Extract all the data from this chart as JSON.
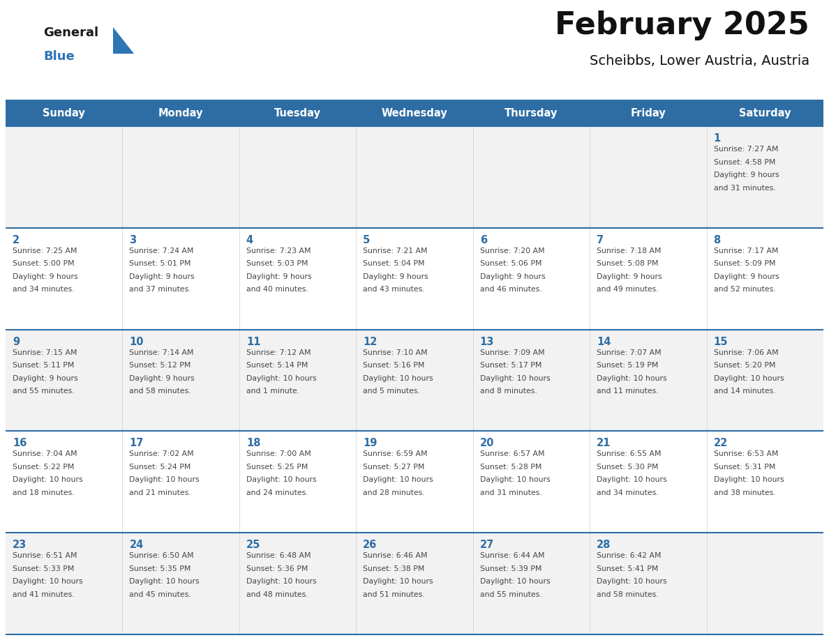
{
  "title": "February 2025",
  "subtitle": "Scheibbs, Lower Austria, Austria",
  "header_bg": "#2E6DA4",
  "header_text_color": "#FFFFFF",
  "cell_bg_odd": "#F2F2F2",
  "cell_bg_even": "#FFFFFF",
  "day_number_color": "#2E6DA4",
  "info_text_color": "#444444",
  "line_color": "#2E6DA4",
  "days_of_week": [
    "Sunday",
    "Monday",
    "Tuesday",
    "Wednesday",
    "Thursday",
    "Friday",
    "Saturday"
  ],
  "logo_general_color": "#1a1a1a",
  "logo_blue_color": "#2E75B6",
  "calendar_data": [
    [
      null,
      null,
      null,
      null,
      null,
      null,
      {
        "day": 1,
        "sunrise": "7:27 AM",
        "sunset": "4:58 PM",
        "daylight": "9 hours",
        "daylight2": "and 31 minutes."
      }
    ],
    [
      {
        "day": 2,
        "sunrise": "7:25 AM",
        "sunset": "5:00 PM",
        "daylight": "9 hours",
        "daylight2": "and 34 minutes."
      },
      {
        "day": 3,
        "sunrise": "7:24 AM",
        "sunset": "5:01 PM",
        "daylight": "9 hours",
        "daylight2": "and 37 minutes."
      },
      {
        "day": 4,
        "sunrise": "7:23 AM",
        "sunset": "5:03 PM",
        "daylight": "9 hours",
        "daylight2": "and 40 minutes."
      },
      {
        "day": 5,
        "sunrise": "7:21 AM",
        "sunset": "5:04 PM",
        "daylight": "9 hours",
        "daylight2": "and 43 minutes."
      },
      {
        "day": 6,
        "sunrise": "7:20 AM",
        "sunset": "5:06 PM",
        "daylight": "9 hours",
        "daylight2": "and 46 minutes."
      },
      {
        "day": 7,
        "sunrise": "7:18 AM",
        "sunset": "5:08 PM",
        "daylight": "9 hours",
        "daylight2": "and 49 minutes."
      },
      {
        "day": 8,
        "sunrise": "7:17 AM",
        "sunset": "5:09 PM",
        "daylight": "9 hours",
        "daylight2": "and 52 minutes."
      }
    ],
    [
      {
        "day": 9,
        "sunrise": "7:15 AM",
        "sunset": "5:11 PM",
        "daylight": "9 hours",
        "daylight2": "and 55 minutes."
      },
      {
        "day": 10,
        "sunrise": "7:14 AM",
        "sunset": "5:12 PM",
        "daylight": "9 hours",
        "daylight2": "and 58 minutes."
      },
      {
        "day": 11,
        "sunrise": "7:12 AM",
        "sunset": "5:14 PM",
        "daylight": "10 hours",
        "daylight2": "and 1 minute."
      },
      {
        "day": 12,
        "sunrise": "7:10 AM",
        "sunset": "5:16 PM",
        "daylight": "10 hours",
        "daylight2": "and 5 minutes."
      },
      {
        "day": 13,
        "sunrise": "7:09 AM",
        "sunset": "5:17 PM",
        "daylight": "10 hours",
        "daylight2": "and 8 minutes."
      },
      {
        "day": 14,
        "sunrise": "7:07 AM",
        "sunset": "5:19 PM",
        "daylight": "10 hours",
        "daylight2": "and 11 minutes."
      },
      {
        "day": 15,
        "sunrise": "7:06 AM",
        "sunset": "5:20 PM",
        "daylight": "10 hours",
        "daylight2": "and 14 minutes."
      }
    ],
    [
      {
        "day": 16,
        "sunrise": "7:04 AM",
        "sunset": "5:22 PM",
        "daylight": "10 hours",
        "daylight2": "and 18 minutes."
      },
      {
        "day": 17,
        "sunrise": "7:02 AM",
        "sunset": "5:24 PM",
        "daylight": "10 hours",
        "daylight2": "and 21 minutes."
      },
      {
        "day": 18,
        "sunrise": "7:00 AM",
        "sunset": "5:25 PM",
        "daylight": "10 hours",
        "daylight2": "and 24 minutes."
      },
      {
        "day": 19,
        "sunrise": "6:59 AM",
        "sunset": "5:27 PM",
        "daylight": "10 hours",
        "daylight2": "and 28 minutes."
      },
      {
        "day": 20,
        "sunrise": "6:57 AM",
        "sunset": "5:28 PM",
        "daylight": "10 hours",
        "daylight2": "and 31 minutes."
      },
      {
        "day": 21,
        "sunrise": "6:55 AM",
        "sunset": "5:30 PM",
        "daylight": "10 hours",
        "daylight2": "and 34 minutes."
      },
      {
        "day": 22,
        "sunrise": "6:53 AM",
        "sunset": "5:31 PM",
        "daylight": "10 hours",
        "daylight2": "and 38 minutes."
      }
    ],
    [
      {
        "day": 23,
        "sunrise": "6:51 AM",
        "sunset": "5:33 PM",
        "daylight": "10 hours",
        "daylight2": "and 41 minutes."
      },
      {
        "day": 24,
        "sunrise": "6:50 AM",
        "sunset": "5:35 PM",
        "daylight": "10 hours",
        "daylight2": "and 45 minutes."
      },
      {
        "day": 25,
        "sunrise": "6:48 AM",
        "sunset": "5:36 PM",
        "daylight": "10 hours",
        "daylight2": "and 48 minutes."
      },
      {
        "day": 26,
        "sunrise": "6:46 AM",
        "sunset": "5:38 PM",
        "daylight": "10 hours",
        "daylight2": "and 51 minutes."
      },
      {
        "day": 27,
        "sunrise": "6:44 AM",
        "sunset": "5:39 PM",
        "daylight": "10 hours",
        "daylight2": "and 55 minutes."
      },
      {
        "day": 28,
        "sunrise": "6:42 AM",
        "sunset": "5:41 PM",
        "daylight": "10 hours",
        "daylight2": "and 58 minutes."
      },
      null
    ]
  ]
}
